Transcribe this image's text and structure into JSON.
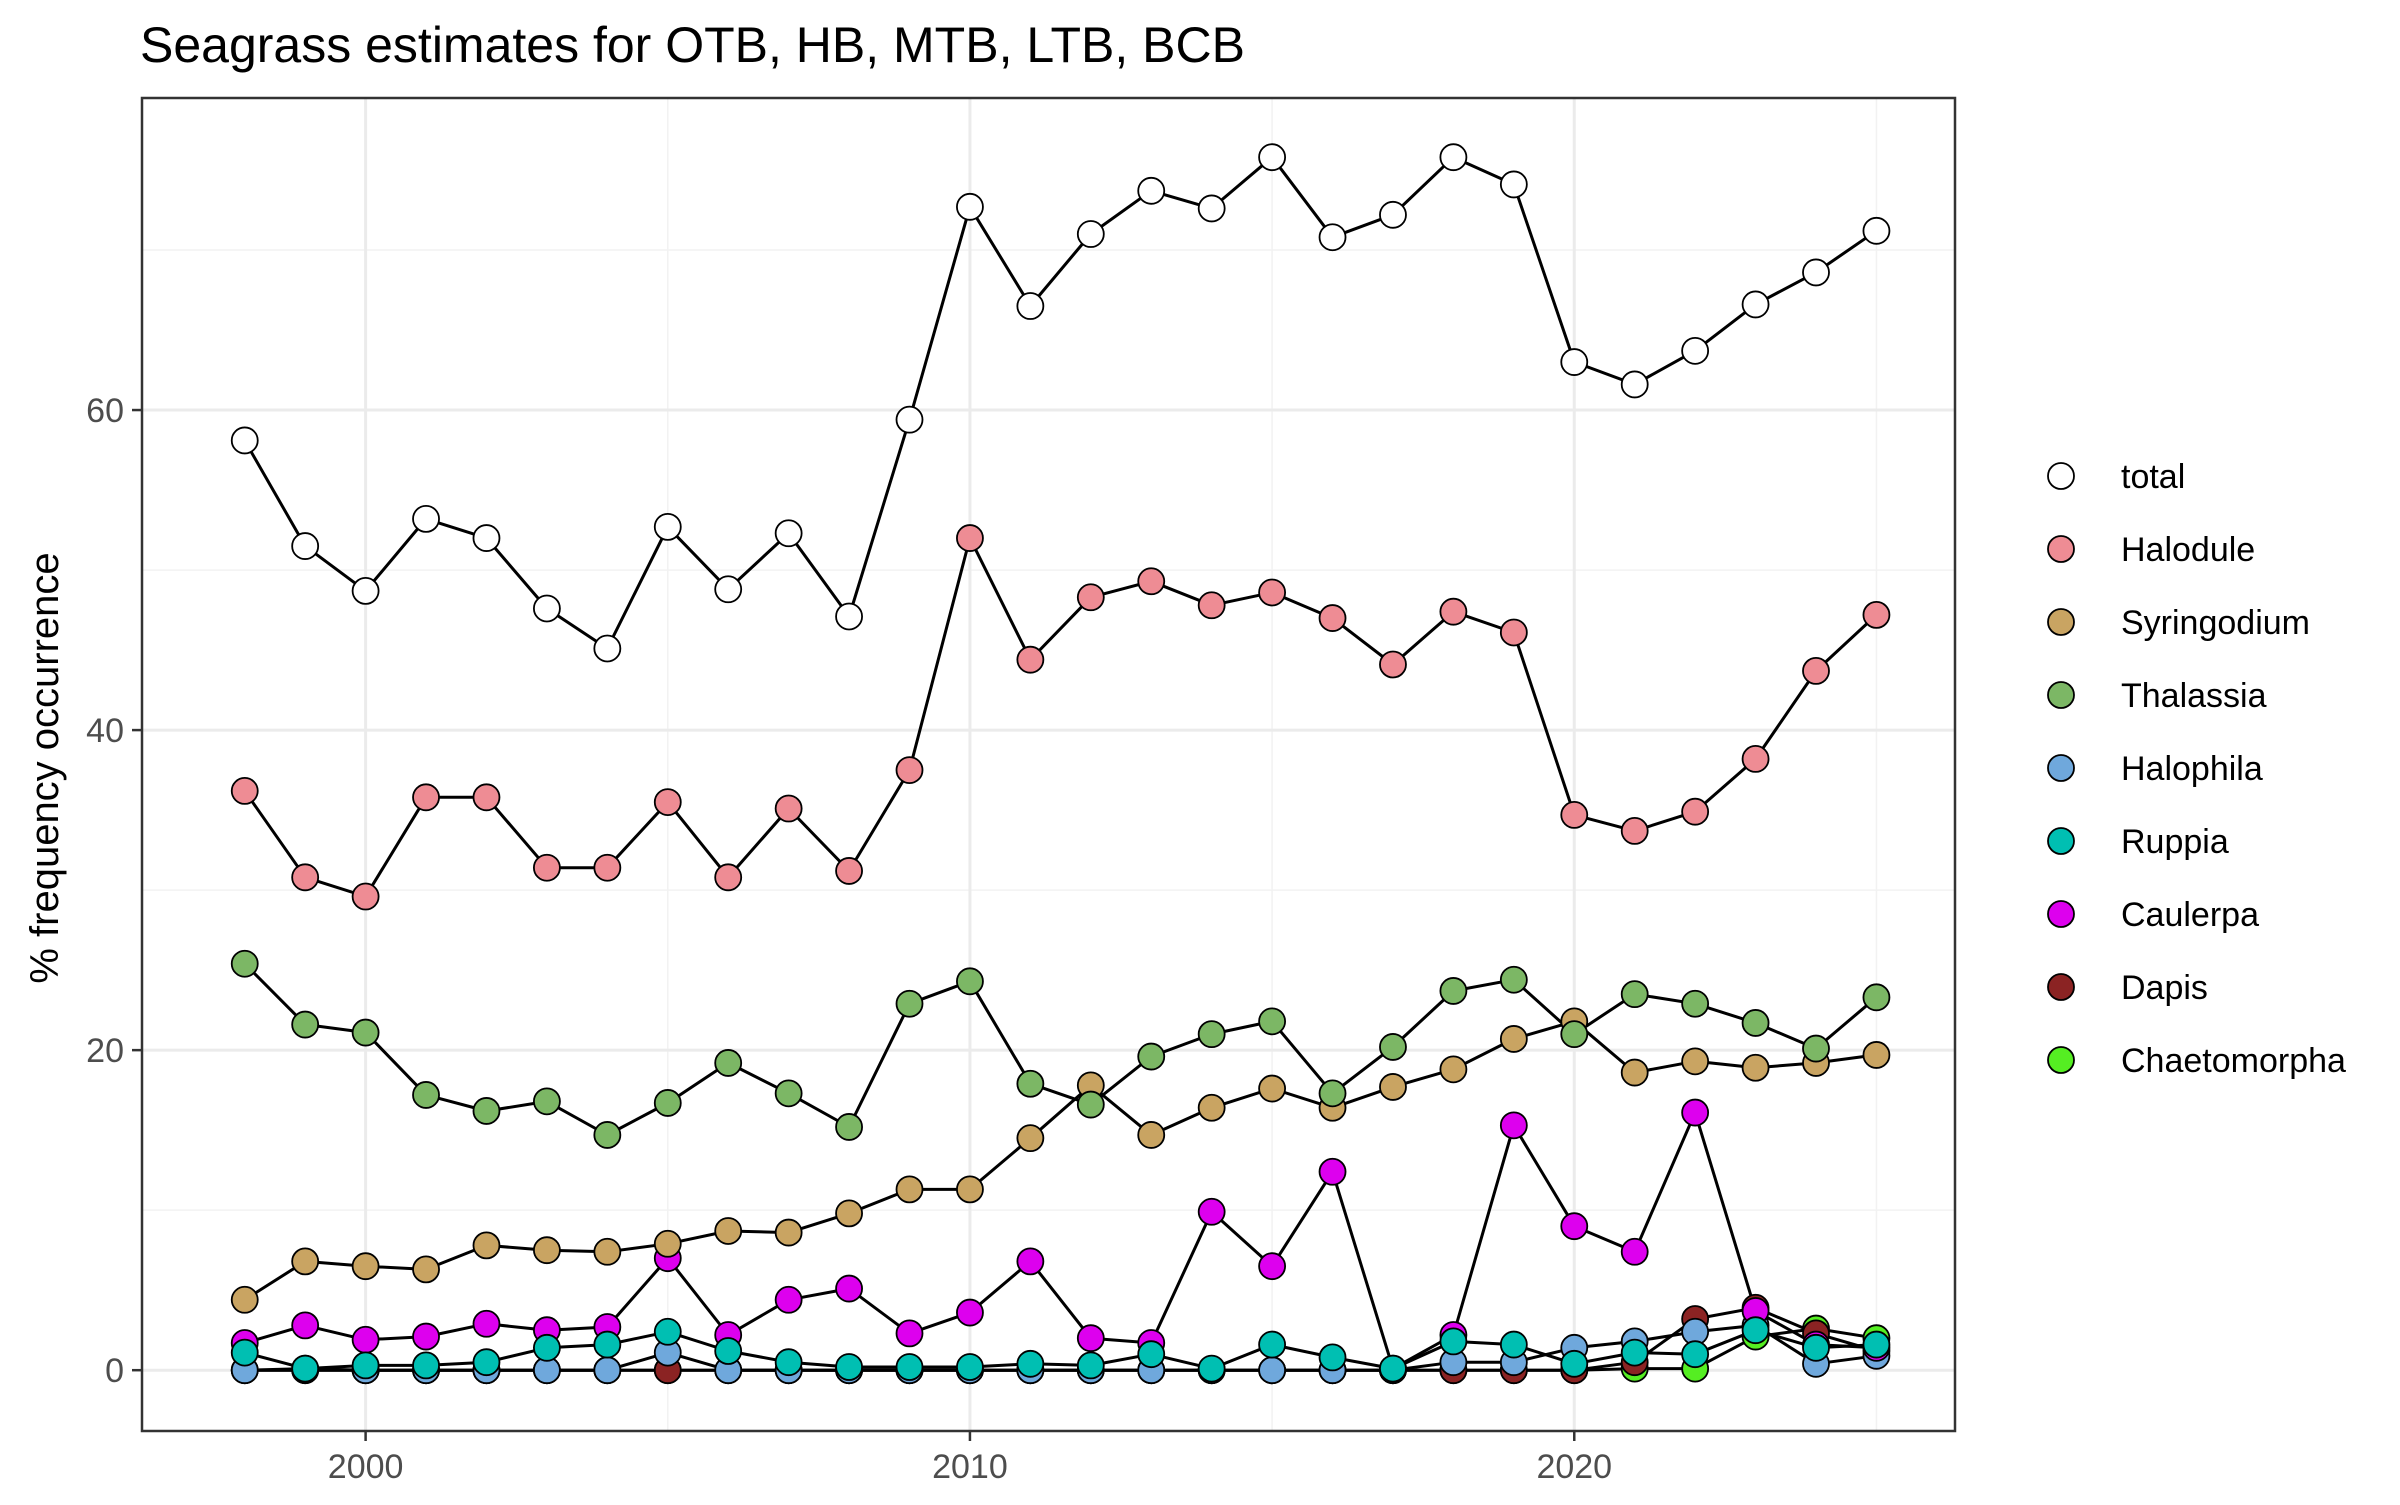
{
  "chart_data": {
    "type": "line",
    "title": "Seagrass estimates for OTB, HB, MTB, LTB, BCB",
    "xlabel": "",
    "ylabel": "% frequency occurrence",
    "xlim": [
      1996.3,
      2026.3
    ],
    "ylim": [
      -3.8,
      79.5
    ],
    "x_ticks": [
      2000,
      2010,
      2020
    ],
    "y_ticks": [
      0,
      20,
      40,
      60
    ],
    "x_tick_labels": [
      "2000",
      "2010",
      "2020"
    ],
    "y_tick_labels": [
      "0",
      "20",
      "40",
      "60"
    ],
    "grid": true,
    "legend_position": "right",
    "x": [
      1998,
      1999,
      2000,
      2001,
      2002,
      2003,
      2004,
      2005,
      2006,
      2007,
      2008,
      2009,
      2010,
      2011,
      2012,
      2013,
      2014,
      2015,
      2016,
      2017,
      2018,
      2019,
      2020,
      2021,
      2022,
      2023,
      2024,
      2025
    ],
    "series": [
      {
        "name": "Chaetomorpha",
        "color": "#55ee22",
        "values": [
          0,
          0,
          0,
          0,
          0,
          0,
          0,
          0,
          0,
          0,
          0,
          0,
          0,
          0,
          0,
          0,
          0,
          0,
          0,
          0,
          0,
          0,
          0,
          0.1,
          0.1,
          2.1,
          2.6,
          2.0
        ]
      },
      {
        "name": "Dapis",
        "color": "#8b2323",
        "values": [
          0,
          0,
          0,
          0,
          0,
          0,
          0,
          0,
          0,
          0,
          0,
          0,
          0,
          0,
          0,
          0,
          0,
          0,
          0,
          0,
          0,
          0,
          0,
          0.5,
          3.2,
          3.9,
          2.3,
          1.2
        ]
      },
      {
        "name": "Halophila",
        "color": "#6fa8dc",
        "values": [
          0,
          0.1,
          0,
          0,
          0,
          0,
          0,
          1.1,
          0,
          0,
          0,
          0,
          0,
          0,
          0,
          0,
          0,
          0,
          0,
          0,
          0.5,
          0.5,
          1.4,
          1.8,
          2.4,
          2.8,
          0.4,
          0.9
        ]
      },
      {
        "name": "Caulerpa",
        "color": "#dd00ee",
        "values": [
          1.7,
          2.8,
          1.9,
          2.1,
          2.9,
          2.5,
          2.7,
          7.0,
          2.2,
          4.4,
          5.1,
          2.3,
          3.6,
          6.8,
          2.0,
          1.7,
          9.9,
          6.5,
          12.4,
          0.1,
          2.2,
          15.3,
          9.0,
          7.4,
          16.1,
          3.7,
          1.6,
          1.4
        ]
      },
      {
        "name": "Ruppia",
        "color": "#00bfb2",
        "values": [
          1.1,
          0.1,
          0.3,
          0.3,
          0.5,
          1.4,
          1.6,
          2.4,
          1.2,
          0.5,
          0.2,
          0.2,
          0.2,
          0.4,
          0.3,
          1.0,
          0.1,
          1.6,
          0.8,
          0.1,
          1.8,
          1.6,
          0.4,
          1.1,
          1.0,
          2.5,
          1.4,
          1.6
        ]
      },
      {
        "name": "Syringodium",
        "color": "#c9a462",
        "values": [
          4.4,
          6.8,
          6.5,
          6.3,
          7.8,
          7.5,
          7.4,
          7.9,
          8.7,
          8.6,
          9.8,
          11.3,
          11.3,
          14.5,
          17.8,
          14.7,
          16.4,
          17.6,
          16.4,
          17.7,
          18.8,
          20.7,
          21.8,
          18.6,
          19.3,
          18.9,
          19.2,
          19.7
        ]
      },
      {
        "name": "Thalassia",
        "color": "#7cb765",
        "values": [
          25.4,
          21.6,
          21.1,
          17.2,
          16.2,
          16.8,
          14.7,
          16.7,
          19.2,
          17.3,
          15.2,
          22.9,
          24.3,
          17.9,
          16.6,
          19.6,
          21.0,
          21.8,
          17.3,
          20.2,
          23.7,
          24.4,
          21.0,
          23.5,
          22.9,
          21.7,
          20.1,
          23.3
        ]
      },
      {
        "name": "Halodule",
        "color": "#ee8c94",
        "values": [
          36.2,
          30.8,
          29.6,
          35.8,
          35.8,
          31.4,
          31.4,
          35.5,
          30.8,
          35.1,
          31.2,
          37.5,
          52.0,
          44.4,
          48.3,
          49.3,
          47.8,
          48.6,
          47.0,
          44.1,
          47.4,
          46.1,
          34.7,
          33.7,
          34.9,
          38.2,
          43.7,
          47.2
        ]
      },
      {
        "name": "total",
        "color": "#ffffff",
        "values": [
          58.1,
          51.5,
          48.7,
          53.2,
          52.0,
          47.6,
          45.1,
          52.7,
          48.8,
          52.3,
          47.1,
          59.4,
          72.7,
          66.5,
          71.0,
          73.7,
          72.6,
          75.8,
          70.8,
          72.2,
          75.8,
          74.1,
          63.0,
          61.6,
          63.7,
          66.6,
          68.6,
          71.2
        ]
      }
    ],
    "legend": [
      {
        "name": "total",
        "color": "#ffffff"
      },
      {
        "name": "Halodule",
        "color": "#ee8c94"
      },
      {
        "name": "Syringodium",
        "color": "#c9a462"
      },
      {
        "name": "Thalassia",
        "color": "#7cb765"
      },
      {
        "name": "Halophila",
        "color": "#6fa8dc"
      },
      {
        "name": "Ruppia",
        "color": "#00bfb2"
      },
      {
        "name": "Caulerpa",
        "color": "#dd00ee"
      },
      {
        "name": "Dapis",
        "color": "#8b2323"
      },
      {
        "name": "Chaetomorpha",
        "color": "#55ee22"
      }
    ]
  }
}
